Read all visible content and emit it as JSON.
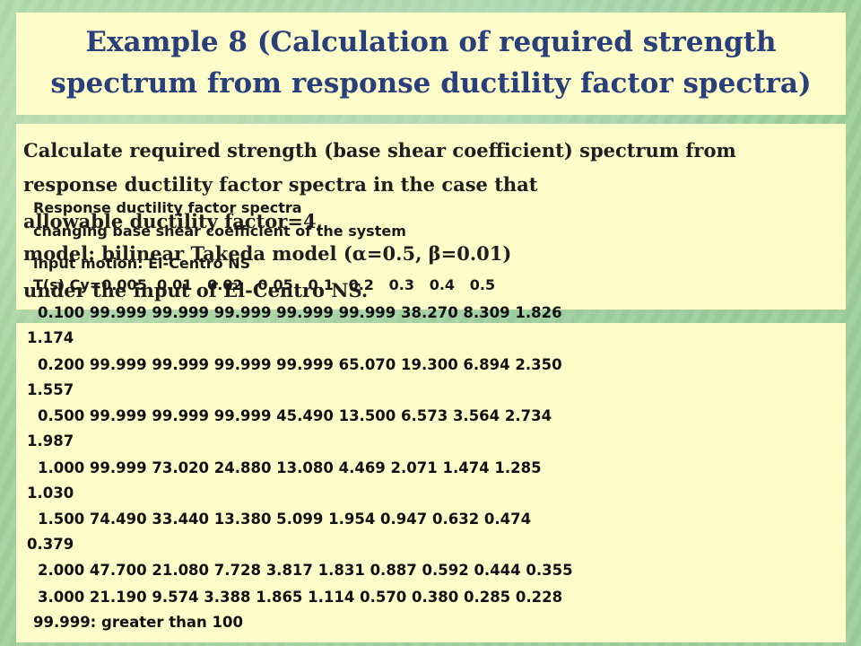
{
  "title": {
    "line1": "Example 8 (Calculation of required strength",
    "line2": "spectrum from response ductility factor spectra)"
  },
  "instruction": {
    "line1": "Calculate required strength (base shear coefficient) spectrum from",
    "line2": "response ductility factor spectra in the case that",
    "line3": "allowable ductility factor=4,",
    "line4": "model: bilinear Takeda model (α=0.5, β=0.01)",
    "line5": "under the input of El-Centro NS."
  },
  "header": {
    "line1": "Response ductility factor spectra",
    "line2": "changing base shear coefficient of the system",
    "line3": "input motion: El-Centro NS",
    "columns": "T(s) Cy=0.005  0.01   0.02   0.05   0.1   0.2   0.3   0.4   0.5"
  },
  "table": {
    "rows": [
      {
        "period": "0.100",
        "values": [
          "99.999",
          "99.999",
          "99.999",
          "99.999",
          "99.999",
          "38.270",
          "8.309",
          "1.826",
          "1.174"
        ]
      },
      {
        "period": "0.200",
        "values": [
          "99.999",
          "99.999",
          "99.999",
          "99.999",
          "65.070",
          "19.300",
          "6.894",
          "2.350",
          "1.557"
        ]
      },
      {
        "period": "0.500",
        "values": [
          "99.999",
          "99.999",
          "99.999",
          "45.490",
          "13.500",
          "6.573",
          "3.564",
          "2.734",
          "1.987"
        ]
      },
      {
        "period": "1.000",
        "values": [
          "99.999",
          "73.020",
          "24.880",
          "13.080",
          "4.469",
          "2.071",
          "1.474",
          "1.285",
          "1.030"
        ]
      },
      {
        "period": "1.500",
        "values": [
          "74.490",
          "33.440",
          "13.380",
          "5.099",
          "1.954",
          "0.947",
          "0.632",
          "0.474",
          "0.379"
        ]
      },
      {
        "period": "2.000",
        "values": [
          "47.700",
          "21.080",
          "7.728",
          "3.817",
          "1.831",
          "0.887",
          "0.592",
          "0.444",
          "0.355"
        ]
      },
      {
        "period": "3.000",
        "values": [
          "21.190",
          "9.574",
          "3.388",
          "1.865",
          "1.114",
          "0.570",
          "0.380",
          "0.285",
          "0.228"
        ]
      }
    ],
    "note": "99.999: greater than 100"
  }
}
